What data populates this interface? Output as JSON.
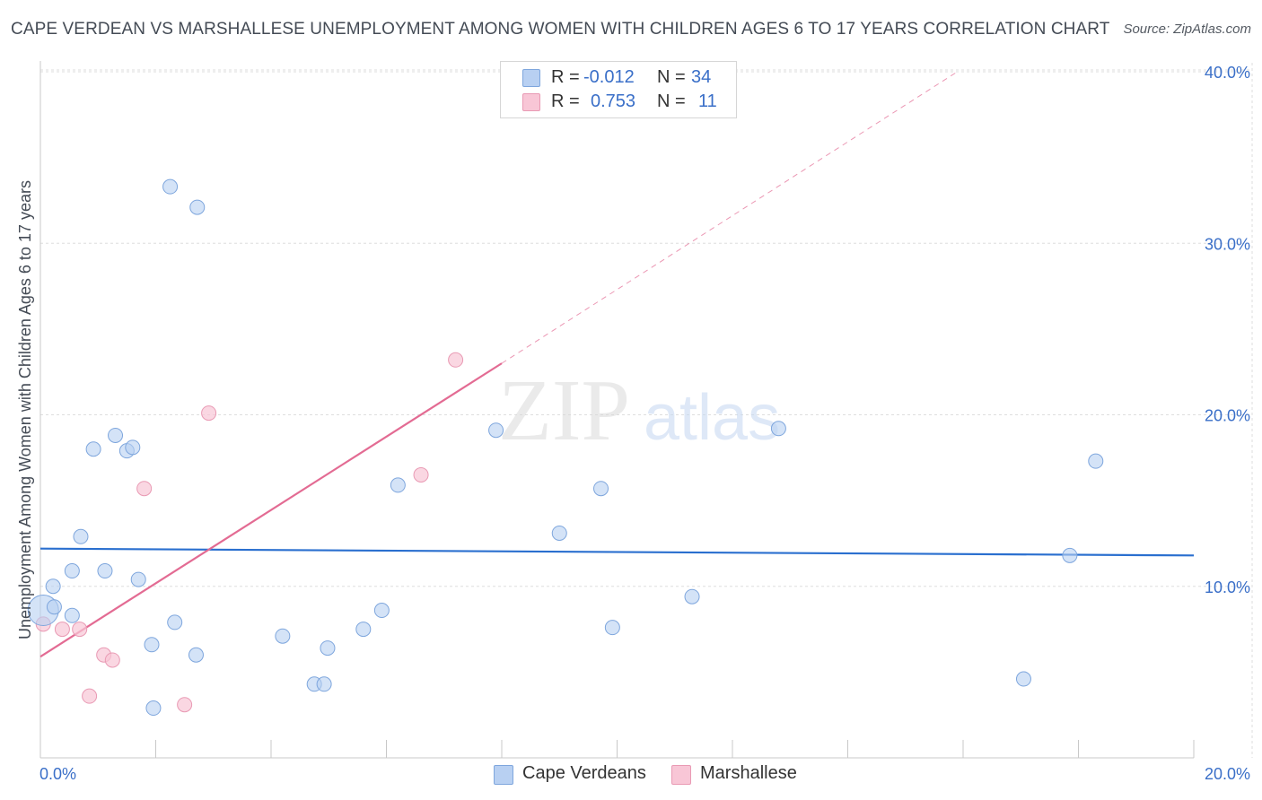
{
  "title": "CAPE VERDEAN VS MARSHALLESE UNEMPLOYMENT AMONG WOMEN WITH CHILDREN AGES 6 TO 17 YEARS CORRELATION CHART",
  "source": "Source: ZipAtlas.com",
  "watermark": {
    "zip": "ZIP",
    "atlas": "atlas"
  },
  "legend": {
    "r_label": "R =",
    "n_label": "N =",
    "rows": [
      {
        "r": "-0.012",
        "n": "34"
      },
      {
        "r": "0.753",
        "n": "11"
      }
    ]
  },
  "colors": {
    "blue_fill": "#b8d0f2",
    "blue_stroke": "#7ea6dd",
    "blue_line": "#2a6fcf",
    "pink_fill": "#f8c6d6",
    "pink_stroke": "#e99ab4",
    "pink_line": "#e36b93",
    "axis_text": "#3a6fc8",
    "grid": "#dddddd"
  },
  "chart_data": {
    "type": "scatter",
    "title": "CAPE VERDEAN VS MARSHALLESE UNEMPLOYMENT AMONG WOMEN WITH CHILDREN AGES 6 TO 17 YEARS CORRELATION CHART",
    "xlabel": "",
    "ylabel": "Unemployment Among Women with Children Ages 6 to 17 years",
    "xlim": [
      0,
      20
    ],
    "ylim": [
      0,
      40
    ],
    "x_tick_labels": [
      {
        "value": 0,
        "label": "0.0%"
      },
      {
        "value": 20,
        "label": "20.0%"
      }
    ],
    "y_tick_labels": [
      {
        "value": 10,
        "label": "10.0%"
      },
      {
        "value": 20,
        "label": "20.0%"
      },
      {
        "value": 30,
        "label": "30.0%"
      },
      {
        "value": 40,
        "label": "40.0%"
      }
    ],
    "grid": true,
    "legend_position": "top-center",
    "series": [
      {
        "name": "Cape Verdeans",
        "r": -0.012,
        "n": 34,
        "trend": {
          "x": [
            0,
            20
          ],
          "y": [
            12.2,
            11.8
          ]
        },
        "points": [
          {
            "x": 0.05,
            "y": 8.6,
            "big": true
          },
          {
            "x": 0.24,
            "y": 8.8
          },
          {
            "x": 0.22,
            "y": 10.0
          },
          {
            "x": 0.55,
            "y": 8.3
          },
          {
            "x": 0.55,
            "y": 10.9
          },
          {
            "x": 0.7,
            "y": 12.9
          },
          {
            "x": 0.92,
            "y": 18.0
          },
          {
            "x": 1.12,
            "y": 10.9
          },
          {
            "x": 1.3,
            "y": 18.8
          },
          {
            "x": 1.5,
            "y": 17.9
          },
          {
            "x": 1.6,
            "y": 18.1
          },
          {
            "x": 1.7,
            "y": 10.4
          },
          {
            "x": 1.93,
            "y": 6.6
          },
          {
            "x": 1.96,
            "y": 2.9
          },
          {
            "x": 2.25,
            "y": 33.3
          },
          {
            "x": 2.33,
            "y": 7.9
          },
          {
            "x": 2.7,
            "y": 6.0
          },
          {
            "x": 2.72,
            "y": 32.1
          },
          {
            "x": 4.2,
            "y": 7.1
          },
          {
            "x": 4.75,
            "y": 4.3
          },
          {
            "x": 4.92,
            "y": 4.3
          },
          {
            "x": 4.98,
            "y": 6.4
          },
          {
            "x": 5.6,
            "y": 7.5
          },
          {
            "x": 5.92,
            "y": 8.6
          },
          {
            "x": 6.2,
            "y": 15.9
          },
          {
            "x": 7.9,
            "y": 19.1
          },
          {
            "x": 9.0,
            "y": 13.1
          },
          {
            "x": 9.72,
            "y": 15.7
          },
          {
            "x": 9.92,
            "y": 7.6
          },
          {
            "x": 11.3,
            "y": 9.4
          },
          {
            "x": 12.8,
            "y": 19.2
          },
          {
            "x": 17.05,
            "y": 4.6
          },
          {
            "x": 17.85,
            "y": 11.8
          },
          {
            "x": 18.3,
            "y": 17.3
          }
        ]
      },
      {
        "name": "Marshallese",
        "r": 0.753,
        "n": 11,
        "trend": {
          "x": [
            0,
            8.0
          ],
          "y": [
            5.9,
            23.0
          ]
        },
        "trend_extension": {
          "x": [
            8.0,
            15.9
          ],
          "y": [
            23.0,
            40.0
          ]
        },
        "points": [
          {
            "x": 0.05,
            "y": 7.8
          },
          {
            "x": 0.38,
            "y": 7.5
          },
          {
            "x": 0.68,
            "y": 7.5
          },
          {
            "x": 0.85,
            "y": 3.6
          },
          {
            "x": 1.1,
            "y": 6.0
          },
          {
            "x": 1.25,
            "y": 5.7
          },
          {
            "x": 1.8,
            "y": 15.7
          },
          {
            "x": 2.5,
            "y": 3.1
          },
          {
            "x": 2.92,
            "y": 20.1
          },
          {
            "x": 6.6,
            "y": 16.5
          },
          {
            "x": 7.2,
            "y": 23.2
          }
        ]
      }
    ]
  }
}
